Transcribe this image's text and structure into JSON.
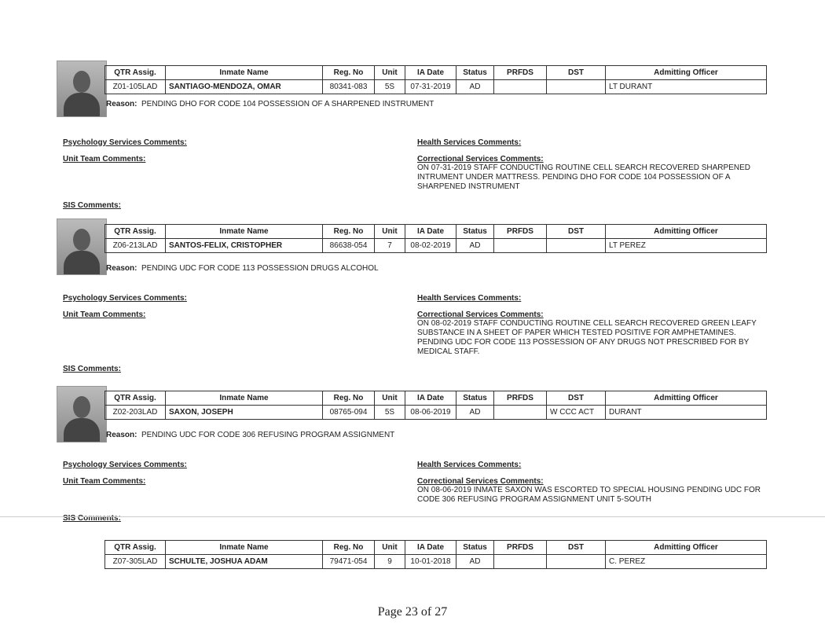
{
  "headers": [
    "QTR Assig.",
    "Inmate Name",
    "Reg. No",
    "Unit",
    "IA Date",
    "Status",
    "PRFDS",
    "DST",
    "Admitting Officer"
  ],
  "labels": {
    "reason": "Reason:",
    "psych": "Psychology Services Comments:",
    "health": "Health Services Comments:",
    "unit_team": "Unit Team Comments:",
    "correctional": "Correctional Services Comments:",
    "sis": "SIS Comments:"
  },
  "records": [
    {
      "qtr": "Z01-105LAD",
      "name": "SANTIAGO-MENDOZA, OMAR",
      "reg": "80341-083",
      "unit": "5S",
      "ia_date": "07-31-2019",
      "status": "AD",
      "prfds": "",
      "dst": "",
      "officer": "LT DURANT",
      "reason": "PENDING DHO FOR CODE 104 POSSESSION OF A SHARPENED INSTRUMENT",
      "correctional": "ON 07-31-2019 STAFF CONDUCTING ROUTINE CELL SEARCH RECOVERED SHARPENED INTRUMENT UNDER MATTRESS. PENDING DHO FOR CODE 104 POSSESSION OF A SHARPENED INSTRUMENT"
    },
    {
      "qtr": "Z06-213LAD",
      "name": "SANTOS-FELIX, CRISTOPHER",
      "reg": "86638-054",
      "unit": "7",
      "ia_date": "08-02-2019",
      "status": "AD",
      "prfds": "",
      "dst": "",
      "officer": "LT PEREZ",
      "reason": "PENDING UDC FOR CODE 113 POSSESSION DRUGS ALCOHOL",
      "correctional": "ON 08-02-2019 STAFF CONDUCTING ROUTINE CELL SEARCH RECOVERED GREEN LEAFY SUBSTANCE IN A SHEET OF PAPER WHICH TESTED POSITIVE FOR AMPHETAMINES. PENDING UDC FOR CODE 113 POSSESSION OF ANY DRUGS NOT PRESCRIBED FOR BY MEDICAL STAFF."
    },
    {
      "qtr": "Z02-203LAD",
      "name": "SAXON, JOSEPH",
      "reg": "08765-094",
      "unit": "5S",
      "ia_date": "08-06-2019",
      "status": "AD",
      "prfds": "",
      "dst": "W CCC ACT",
      "officer": "DURANT",
      "reason": "PENDING UDC FOR CODE 306 REFUSING PROGRAM ASSIGNMENT",
      "correctional": "ON 08-06-2019 INMATE SAXON WAS ESCORTED TO SPECIAL HOUSING PENDING UDC FOR CODE 306 REFUSING PROGRAM ASSIGNMENT UNIT 5-SOUTH"
    },
    {
      "qtr": "Z07-305LAD",
      "name": "SCHULTE, JOSHUA ADAM",
      "reg": "79471-054",
      "unit": "9",
      "ia_date": "10-01-2018",
      "status": "AD",
      "prfds": "",
      "dst": "",
      "officer": "C. PEREZ"
    }
  ],
  "footer": "Page 23 of 27"
}
